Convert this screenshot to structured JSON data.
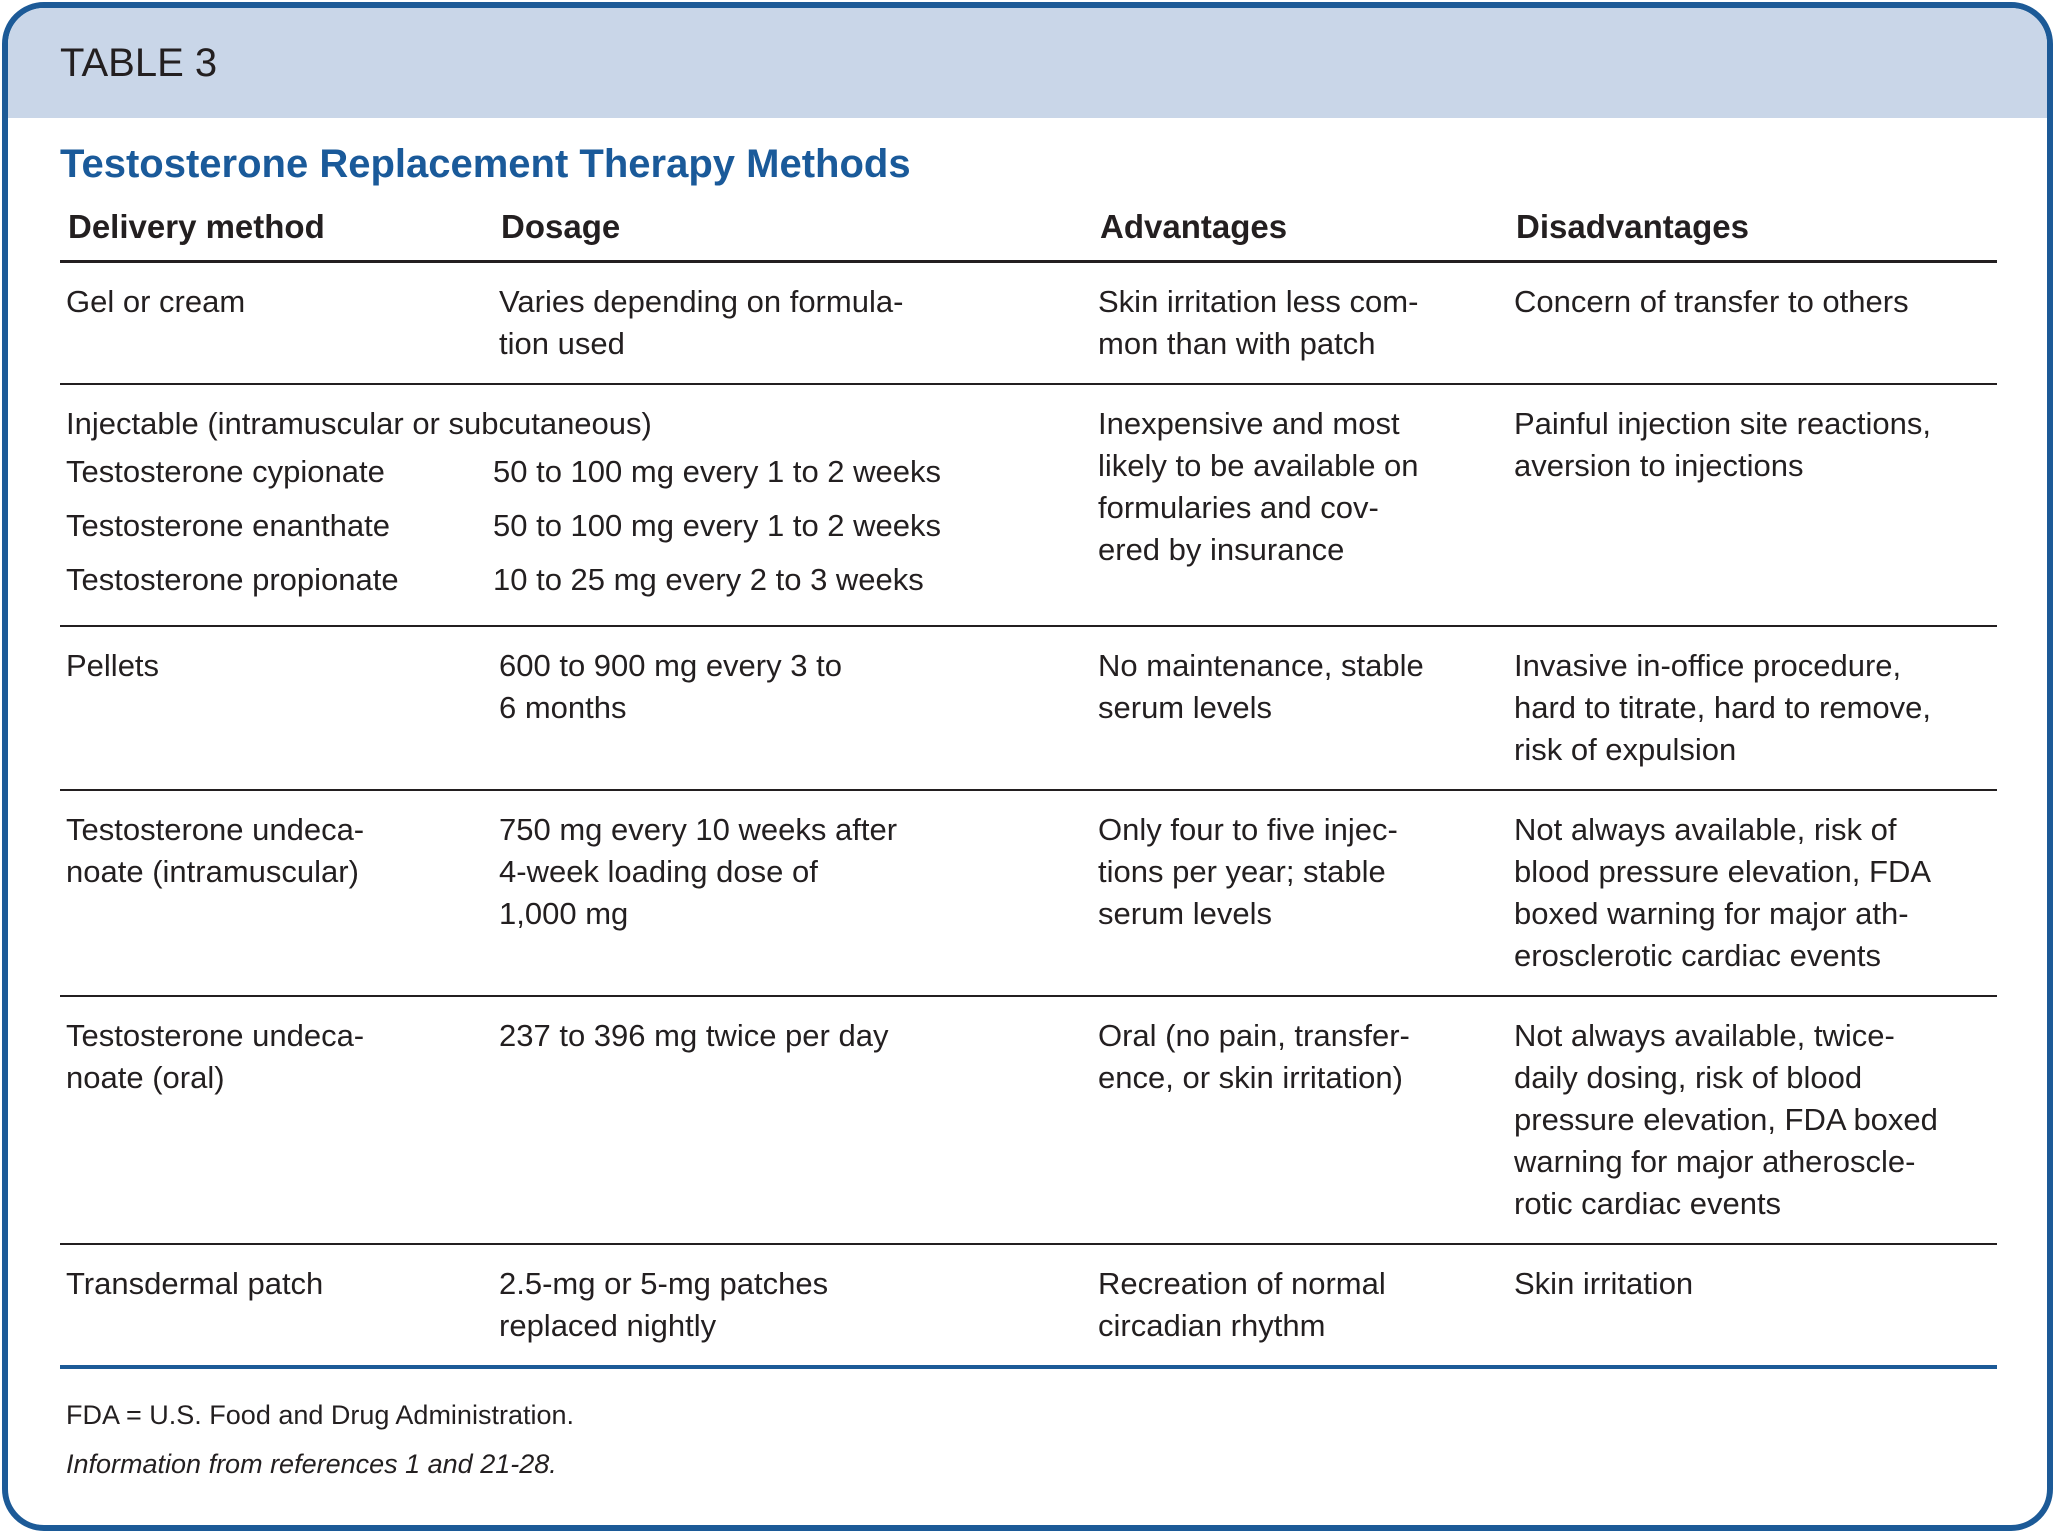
{
  "header": {
    "label": "TABLE 3"
  },
  "title": "Testosterone Replacement Therapy Methods",
  "table": {
    "columns": [
      "Delivery method",
      "Dosage",
      "Advantages",
      "Disadvantages"
    ],
    "rows": [
      {
        "cells": [
          [
            "Gel or cream"
          ],
          [
            "Varies depending on formula-",
            "tion used"
          ],
          [
            "Skin irritation less com-",
            "mon than with patch"
          ],
          [
            "Concern of transfer to others"
          ]
        ]
      },
      {
        "group": "Injectable (intramuscular or subcutaneous)",
        "items": [
          [
            "Testosterone cypionate",
            "50 to 100 mg every 1 to 2 weeks"
          ],
          [
            "Testosterone enanthate",
            "50 to 100 mg every 1 to 2 weeks"
          ],
          [
            "Testosterone propionate",
            "10 to 25 mg every 2 to 3 weeks"
          ]
        ],
        "advantages": [
          "Inexpensive and most",
          "likely to be available on",
          "formularies and cov-",
          "ered by insurance"
        ],
        "disadvantages": [
          "Painful injection site reactions,",
          "aversion to injections"
        ]
      },
      {
        "cells": [
          [
            "Pellets"
          ],
          [
            "600 to 900 mg every 3 to",
            "6 months"
          ],
          [
            "No maintenance, stable",
            "serum levels"
          ],
          [
            "Invasive in-office procedure,",
            "hard to titrate, hard to remove,",
            "risk of expulsion"
          ]
        ]
      },
      {
        "cells": [
          [
            "Testosterone undeca-",
            "noate (intramuscular)"
          ],
          [
            "750 mg every 10 weeks after",
            "4-week loading dose of",
            "1,000 mg"
          ],
          [
            "Only four to five injec-",
            "tions per year; stable",
            "serum levels"
          ],
          [
            "Not always available, risk of",
            "blood pressure elevation, FDA",
            "boxed warning for major ath-",
            "erosclerotic cardiac events"
          ]
        ]
      },
      {
        "cells": [
          [
            "Testosterone undeca-",
            "noate (oral)"
          ],
          [
            "237 to 396 mg twice per day"
          ],
          [
            "Oral (no pain, transfer-",
            "ence, or skin irritation)"
          ],
          [
            "Not always available, twice-",
            "daily dosing, risk of blood",
            "pressure elevation, FDA boxed",
            "warning for major atheroscle-",
            "rotic cardiac events"
          ]
        ]
      },
      {
        "cells": [
          [
            "Transdermal patch"
          ],
          [
            "2.5-mg or 5-mg patches",
            "replaced nightly"
          ],
          [
            "Recreation of normal",
            "circadian rhythm"
          ],
          [
            "Skin irritation"
          ]
        ]
      }
    ]
  },
  "footnotes": [
    "FDA = U.S. Food and Drug Administration.",
    "Information from references 1 and 21-28."
  ]
}
